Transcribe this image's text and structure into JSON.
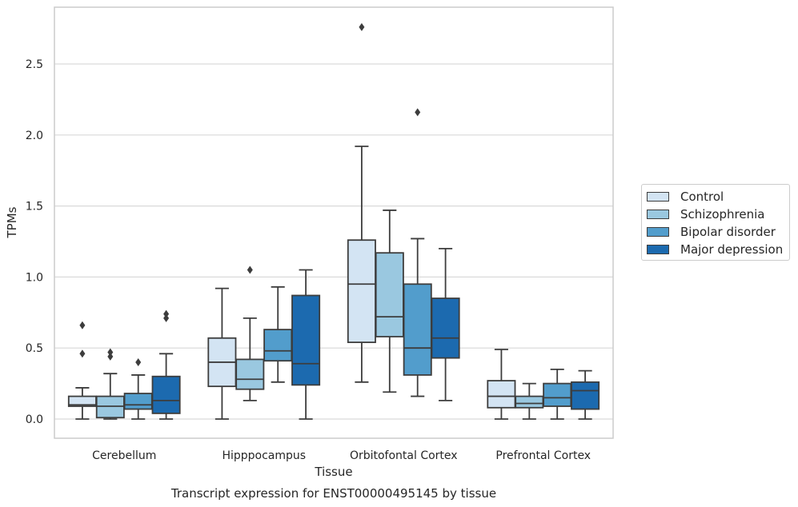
{
  "chart_data": {
    "type": "box",
    "title": "Transcript expression for ENST00000495145 by tissue",
    "xlabel": "Tissue",
    "ylabel": "TPMs",
    "ylim": [
      -0.13,
      2.9
    ],
    "yticks": [
      "0.0",
      "0.5",
      "1.0",
      "1.5",
      "2.0",
      "2.5"
    ],
    "grid": true,
    "legend_position": "right",
    "categories": [
      "Cerebellum",
      "Hipppocampus",
      "Orbitofontal Cortex",
      "Prefrontal Cortex"
    ],
    "series": [
      {
        "name": "Control",
        "color": "#d3e4f3",
        "boxes": [
          {
            "whislo": 0.0,
            "q1": 0.09,
            "med": 0.1,
            "q3": 0.16,
            "whishi": 0.22,
            "fliers": [
              0.46,
              0.66
            ]
          },
          {
            "whislo": 0.0,
            "q1": 0.23,
            "med": 0.4,
            "q3": 0.57,
            "whishi": 0.92,
            "fliers": []
          },
          {
            "whislo": 0.26,
            "q1": 0.54,
            "med": 0.95,
            "q3": 1.26,
            "whishi": 1.92,
            "fliers": [
              2.76
            ]
          },
          {
            "whislo": 0.0,
            "q1": 0.08,
            "med": 0.16,
            "q3": 0.27,
            "whishi": 0.49,
            "fliers": []
          }
        ]
      },
      {
        "name": "Schizophrenia",
        "color": "#9ac8e0",
        "boxes": [
          {
            "whislo": 0.0,
            "q1": 0.01,
            "med": 0.09,
            "q3": 0.16,
            "whishi": 0.32,
            "fliers": [
              0.44,
              0.47
            ]
          },
          {
            "whislo": 0.13,
            "q1": 0.21,
            "med": 0.28,
            "q3": 0.42,
            "whishi": 0.71,
            "fliers": [
              1.05
            ]
          },
          {
            "whislo": 0.19,
            "q1": 0.58,
            "med": 0.72,
            "q3": 1.17,
            "whishi": 1.47,
            "fliers": []
          },
          {
            "whislo": 0.0,
            "q1": 0.08,
            "med": 0.11,
            "q3": 0.16,
            "whishi": 0.25,
            "fliers": []
          }
        ]
      },
      {
        "name": "Bipolar disorder",
        "color": "#529dcc",
        "boxes": [
          {
            "whislo": 0.0,
            "q1": 0.07,
            "med": 0.1,
            "q3": 0.18,
            "whishi": 0.31,
            "fliers": [
              0.4
            ]
          },
          {
            "whislo": 0.26,
            "q1": 0.41,
            "med": 0.48,
            "q3": 0.63,
            "whishi": 0.93,
            "fliers": []
          },
          {
            "whislo": 0.16,
            "q1": 0.31,
            "med": 0.5,
            "q3": 0.95,
            "whishi": 1.27,
            "fliers": [
              2.16
            ]
          },
          {
            "whislo": 0.0,
            "q1": 0.09,
            "med": 0.15,
            "q3": 0.25,
            "whishi": 0.35,
            "fliers": []
          }
        ]
      },
      {
        "name": "Major depression",
        "color": "#1c6aaf",
        "boxes": [
          {
            "whislo": 0.0,
            "q1": 0.04,
            "med": 0.13,
            "q3": 0.3,
            "whishi": 0.46,
            "fliers": [
              0.71,
              0.74
            ]
          },
          {
            "whislo": 0.0,
            "q1": 0.24,
            "med": 0.39,
            "q3": 0.87,
            "whishi": 1.05,
            "fliers": []
          },
          {
            "whislo": 0.13,
            "q1": 0.43,
            "med": 0.57,
            "q3": 0.85,
            "whishi": 1.2,
            "fliers": []
          },
          {
            "whislo": 0.0,
            "q1": 0.07,
            "med": 0.2,
            "q3": 0.26,
            "whishi": 0.34,
            "fliers": []
          }
        ]
      }
    ]
  }
}
